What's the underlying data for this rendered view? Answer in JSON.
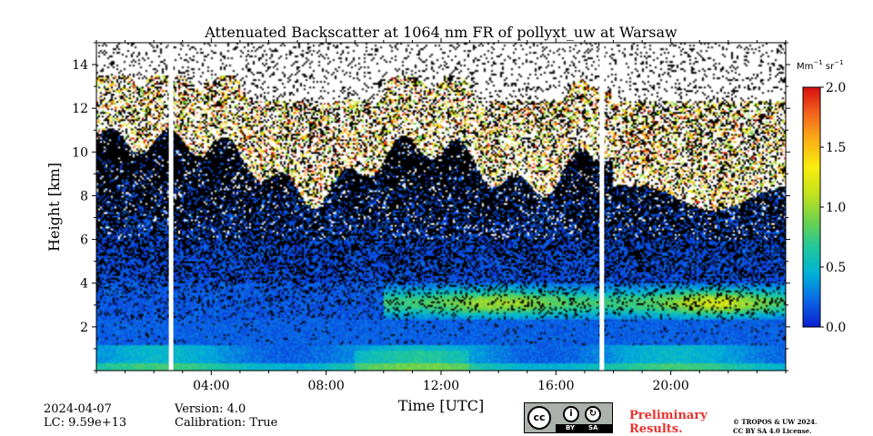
{
  "chart_data": {
    "type": "heatmap",
    "title": "Attenuated Backscatter at 1064 nm FR of pollyxt_uw at Warsaw",
    "xlabel": "Time [UTC]",
    "ylabel": "Height [km]",
    "xlim_hours": [
      0,
      24
    ],
    "ylim_km": [
      0,
      15
    ],
    "x_ticks": [
      {
        "hour": 4,
        "label": "04:00"
      },
      {
        "hour": 8,
        "label": "08:00"
      },
      {
        "hour": 12,
        "label": "12:00"
      },
      {
        "hour": 16,
        "label": "16:00"
      },
      {
        "hour": 20,
        "label": "20:00"
      }
    ],
    "y_ticks": [
      {
        "value": 2,
        "label": "2"
      },
      {
        "value": 4,
        "label": "4"
      },
      {
        "value": 6,
        "label": "6"
      },
      {
        "value": 8,
        "label": "8"
      },
      {
        "value": 10,
        "label": "10"
      },
      {
        "value": 12,
        "label": "12"
      },
      {
        "value": 14,
        "label": "14"
      }
    ],
    "colorbar": {
      "unit_base": "Mm",
      "unit_exp1": "−1",
      "unit_mid": " sr",
      "unit_exp2": "−1",
      "min": 0.0,
      "max": 2.0,
      "ticks": [
        {
          "value": 0.0,
          "label": "0.0"
        },
        {
          "value": 0.5,
          "label": "0.5"
        },
        {
          "value": 1.0,
          "label": "1.0"
        },
        {
          "value": 1.5,
          "label": "1.5"
        },
        {
          "value": 2.0,
          "label": "2.0"
        }
      ],
      "colormap": [
        "#0b1ed0",
        "#0a67e6",
        "#00b1d8",
        "#22c79a",
        "#6fd24a",
        "#c3e21d",
        "#f9ee0c",
        "#fbb016",
        "#f4641c",
        "#d60f10"
      ]
    },
    "data_gaps_hours": [
      2.6,
      17.6
    ],
    "features": [
      {
        "name": "boundary layer",
        "height_km": [
          0,
          1.2
        ],
        "typical_value": 0.4
      },
      {
        "name": "aerosol layer",
        "time_hours": [
          10,
          24
        ],
        "height_km": [
          2.3,
          4.0
        ],
        "typical_value": 0.9
      },
      {
        "name": "cirrus clouds",
        "height_km": [
          7.5,
          13.5
        ],
        "typical_value": 2.0
      }
    ]
  },
  "info": {
    "date": "2024-04-07",
    "lc": "LC: 9.59e+13",
    "version": "Version: 4.0",
    "calibration": "Calibration: True",
    "preliminary_line1": "Preliminary",
    "preliminary_line2": "Results.",
    "license_line1": "© TROPOS & UW 2024.",
    "license_line2": "CC BY SA 4.0 License.",
    "cc_logo": "cc",
    "cc_by": "BY",
    "cc_sa": "SA"
  }
}
